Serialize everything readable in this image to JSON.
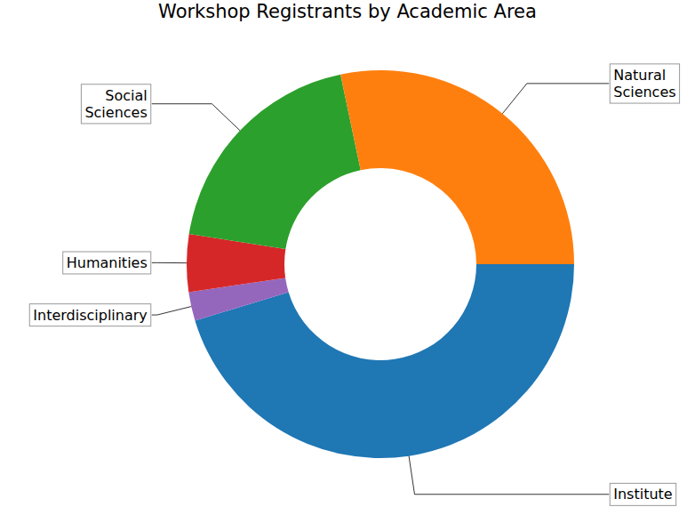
{
  "chart_data": {
    "type": "donut",
    "title": "Workshop Registrants by Academic Area",
    "categories": [
      "Institute",
      "Interdisciplinary",
      "Humanities",
      "Social Sciences",
      "Natural Sciences"
    ],
    "values": [
      45.3,
      2.4,
      4.8,
      19.2,
      28.3
    ],
    "colors": [
      "#1f77b4",
      "#9467bd",
      "#d62728",
      "#2ca02c",
      "#ff7f0e"
    ]
  }
}
